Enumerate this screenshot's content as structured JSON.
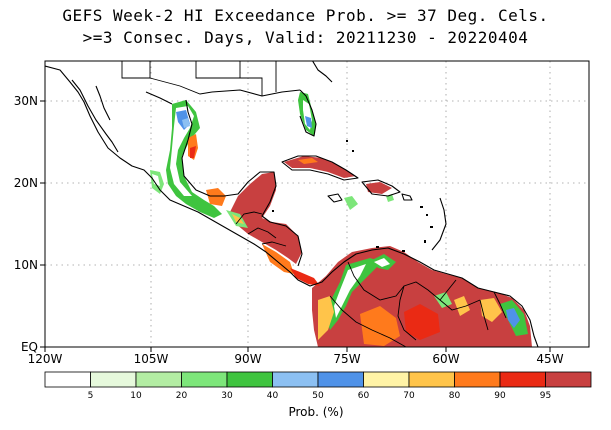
{
  "header": {
    "title_line1": "GEFS Week-2 HI Exceedance Prob. >= 37 Deg. Cels.",
    "title_line2": ">=3 Consec. Days, Valid: 20211230 - 20220404"
  },
  "axes": {
    "lat_labels": [
      "30N",
      "20N",
      "10N",
      "EQ"
    ],
    "lon_labels": [
      "120W",
      "105W",
      "90W",
      "75W",
      "60W",
      "45W"
    ]
  },
  "colorbar": {
    "label": "Prob. (%)",
    "ticks": [
      "5",
      "10",
      "20",
      "30",
      "40",
      "50",
      "60",
      "70",
      "80",
      "90",
      "95"
    ],
    "colors": [
      "#ffffff",
      "#e6f9dc",
      "#b3eda3",
      "#7de67a",
      "#3fc43f",
      "#8cc0f2",
      "#4f92e8",
      "#fff3a6",
      "#ffc44a",
      "#ff7a1c",
      "#ea2a14",
      "#c84040"
    ]
  },
  "palette": {
    "land": "#ffffff",
    "outline": "#000000",
    "high_prob": "#c84040"
  }
}
